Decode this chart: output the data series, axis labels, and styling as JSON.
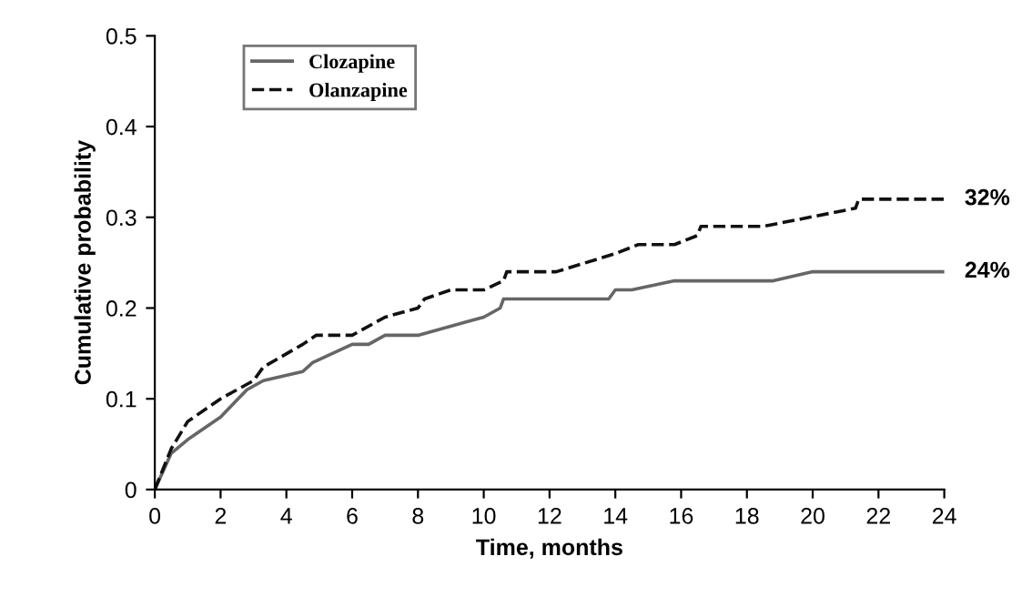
{
  "chart_data": {
    "type": "line",
    "xlabel": "Time, months",
    "ylabel": "Cumulative probability",
    "xlim": [
      0,
      24
    ],
    "xticks": [
      0,
      2,
      4,
      6,
      8,
      10,
      12,
      14,
      16,
      18,
      20,
      22,
      24
    ],
    "ylim": [
      0,
      0.5
    ],
    "yticks": [
      0,
      0.1,
      0.2,
      0.3,
      0.4,
      0.5
    ],
    "grid": false,
    "legend": "top left",
    "marker": "none",
    "series": [
      {
        "name": "Clozapine",
        "color": "#666666",
        "line_style": "solid",
        "x": [
          0,
          0.5,
          1,
          2,
          2.8,
          3.3,
          4.5,
          4.8,
          6,
          6.5,
          7,
          8,
          10,
          10.5,
          10.6,
          13.8,
          14,
          14.5,
          15.8,
          18.8,
          20,
          24
        ],
        "values": [
          0,
          0.04,
          0.055,
          0.08,
          0.11,
          0.12,
          0.13,
          0.14,
          0.16,
          0.16,
          0.17,
          0.17,
          0.19,
          0.2,
          0.21,
          0.21,
          0.22,
          0.22,
          0.23,
          0.23,
          0.24,
          0.24
        ]
      },
      {
        "name": "Olanzapine",
        "color": "#111111",
        "line_style": "dashed",
        "x": [
          0,
          0.5,
          1,
          2,
          3,
          3.3,
          4.5,
          4.9,
          6,
          7,
          8,
          8.2,
          9,
          10,
          10.6,
          10.7,
          12.2,
          14,
          14.7,
          15.8,
          16.5,
          16.6,
          18.5,
          21.3,
          21.4,
          24
        ],
        "values": [
          0,
          0.045,
          0.075,
          0.1,
          0.12,
          0.135,
          0.16,
          0.17,
          0.17,
          0.19,
          0.2,
          0.21,
          0.22,
          0.22,
          0.23,
          0.24,
          0.24,
          0.26,
          0.27,
          0.27,
          0.28,
          0.29,
          0.29,
          0.31,
          0.32,
          0.32
        ]
      }
    ],
    "annotations": [
      {
        "text": "32%",
        "x": 24,
        "y": 0.32
      },
      {
        "text": "24%",
        "x": 24,
        "y": 0.24
      }
    ]
  }
}
